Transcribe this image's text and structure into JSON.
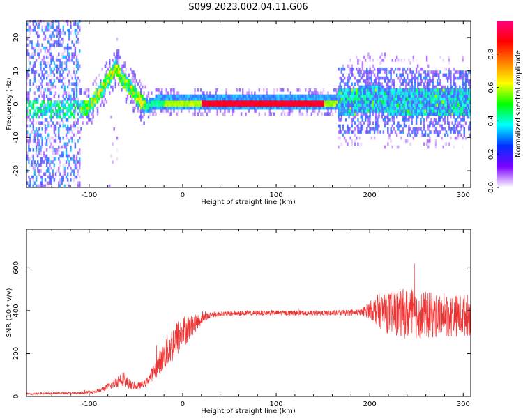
{
  "figure": {
    "title": "S099.2023.002.04.11.G06"
  },
  "chart_data": [
    {
      "type": "heatmap",
      "xlabel": "Height of straight line (km)",
      "ylabel": "Frequency (Hz)",
      "xlim": [
        -167,
        308
      ],
      "ylim": [
        -25,
        25
      ],
      "x_ticks": [
        -100,
        0,
        100,
        200,
        300
      ],
      "y_ticks": [
        -20,
        -10,
        0,
        10,
        20
      ],
      "colorbar": {
        "label": "Normalized spectral amplitude",
        "range": [
          0,
          1
        ],
        "ticks": [
          "0.0",
          "0.2",
          "0.4",
          "0.6",
          "0.8"
        ],
        "colormap": [
          "#ffffff",
          "#7a00ff",
          "#0030ff",
          "#00ffff",
          "#00ff00",
          "#ffff00",
          "#ff8000",
          "#ff0000",
          "#ff0080"
        ]
      },
      "ridge": [
        {
          "x": -110,
          "y": -2
        },
        {
          "x": -100,
          "y": -1
        },
        {
          "x": -90,
          "y": 3
        },
        {
          "x": -80,
          "y": 7
        },
        {
          "x": -72,
          "y": 11
        },
        {
          "x": -65,
          "y": 7
        },
        {
          "x": -55,
          "y": 4
        },
        {
          "x": -45,
          "y": 0
        },
        {
          "x": -38,
          "y": -1
        },
        {
          "x": -30,
          "y": 0
        },
        {
          "x": 0,
          "y": 0
        },
        {
          "x": 100,
          "y": 0
        },
        {
          "x": 160,
          "y": 0
        },
        {
          "x": 200,
          "y": 1
        },
        {
          "x": 250,
          "y": 0
        },
        {
          "x": 308,
          "y": 0
        }
      ]
    },
    {
      "type": "line",
      "xlabel": "Height of straight line (km)",
      "ylabel": "SNR (10 * v/v)",
      "xlim": [
        -167,
        308
      ],
      "ylim": [
        0,
        780
      ],
      "x_ticks": [
        -100,
        0,
        100,
        200,
        300
      ],
      "y_ticks": [
        0,
        200,
        400,
        600
      ],
      "series": [
        {
          "color": "#ee3333",
          "x": [
            -167,
            -140,
            -110,
            -90,
            -75,
            -65,
            -58,
            -50,
            -40,
            -30,
            -20,
            -10,
            0,
            10,
            20,
            30,
            40,
            60,
            100,
            150,
            190,
            200,
            210,
            220,
            240,
            260,
            280,
            308
          ],
          "y": [
            12,
            15,
            15,
            25,
            55,
            85,
            60,
            45,
            60,
            120,
            190,
            250,
            300,
            330,
            360,
            380,
            385,
            388,
            390,
            388,
            392,
            405,
            400,
            390,
            385,
            380,
            375,
            380
          ],
          "noise_amplitude": [
            4,
            5,
            5,
            8,
            20,
            35,
            25,
            15,
            15,
            40,
            70,
            90,
            80,
            50,
            25,
            15,
            12,
            12,
            12,
            12,
            15,
            40,
            80,
            100,
            120,
            110,
            100,
            100
          ]
        }
      ]
    }
  ]
}
